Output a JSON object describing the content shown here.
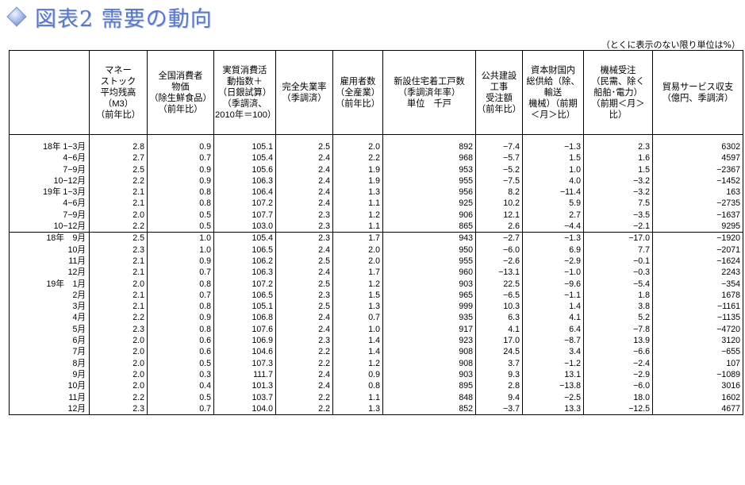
{
  "page_title": "図表2 需要の動向",
  "unit_note": "（とくに表示のない限り単位は%）",
  "columns": [
    "",
    "マネー\nストック\n平均残高\n（M3）\n（前年比）",
    "全国消費者\n物価\n（除生鮮食品）\n（前年比）",
    "実質消費活\n動指数＋\n（日銀試算）\n（季調済、\n2010年＝100）",
    "完全失業率\n（季調済）",
    "雇用者数\n（全産業）\n（前年比）",
    "新設住宅着工戸数\n（季調済年率）\n単位　千戸",
    "公共建設\n工事\n受注額\n（前年比）",
    "資本財国内\n総供給（除、\n輸送\n機械）（前期\n＜月＞比）",
    "機械受注\n（民需、除く\n船舶･電力）\n（前期＜月＞\n比）",
    "貿易サービス収支\n（億円、季調済）"
  ],
  "quarterly": [
    {
      "label": "18年 1−3月",
      "v": [
        "2.8",
        "0.9",
        "105.1",
        "2.5",
        "2.0",
        "892",
        "−7.4",
        "−1.3",
        "2.3",
        "6302"
      ]
    },
    {
      "label": "4−6月",
      "v": [
        "2.7",
        "0.7",
        "105.4",
        "2.4",
        "2.2",
        "968",
        "−5.7",
        "1.5",
        "1.6",
        "4597"
      ]
    },
    {
      "label": "7−9月",
      "v": [
        "2.5",
        "0.9",
        "105.6",
        "2.4",
        "1.9",
        "953",
        "−5.2",
        "1.0",
        "1.5",
        "−2367"
      ]
    },
    {
      "label": "10−12月",
      "v": [
        "2.2",
        "0.9",
        "106.3",
        "2.4",
        "1.9",
        "955",
        "−7.5",
        "4.0",
        "−3.2",
        "−1452"
      ]
    },
    {
      "label": "19年 1−3月",
      "v": [
        "2.1",
        "0.8",
        "106.4",
        "2.4",
        "1.3",
        "956",
        "8.2",
        "−11.4",
        "−3.2",
        "163"
      ]
    },
    {
      "label": "4−6月",
      "v": [
        "2.1",
        "0.8",
        "107.2",
        "2.4",
        "1.1",
        "925",
        "10.2",
        "5.9",
        "7.5",
        "−2735"
      ]
    },
    {
      "label": "7−9月",
      "v": [
        "2.0",
        "0.5",
        "107.7",
        "2.3",
        "1.2",
        "906",
        "12.1",
        "2.7",
        "−3.5",
        "−1637"
      ]
    },
    {
      "label": "10−12月",
      "v": [
        "2.2",
        "0.5",
        "103.0",
        "2.3",
        "1.1",
        "865",
        "2.6",
        "−4.4",
        "−2.1",
        "9295"
      ]
    }
  ],
  "monthly": [
    {
      "label": "18年　9月",
      "v": [
        "2.5",
        "1.0",
        "105.4",
        "2.3",
        "1.7",
        "943",
        "−2.7",
        "−1.3",
        "−17.0",
        "−1920"
      ]
    },
    {
      "label": "10月",
      "v": [
        "2.3",
        "1.0",
        "106.5",
        "2.4",
        "2.0",
        "950",
        "−6.0",
        "6.9",
        "7.7",
        "−2071"
      ]
    },
    {
      "label": "11月",
      "v": [
        "2.1",
        "0.9",
        "106.2",
        "2.5",
        "2.0",
        "955",
        "−2.6",
        "−2.9",
        "−0.1",
        "−1624"
      ]
    },
    {
      "label": "12月",
      "v": [
        "2.1",
        "0.7",
        "106.3",
        "2.4",
        "1.7",
        "960",
        "−13.1",
        "−1.0",
        "−0.3",
        "2243"
      ]
    },
    {
      "label": "19年　1月",
      "v": [
        "2.0",
        "0.8",
        "107.2",
        "2.5",
        "1.2",
        "903",
        "22.5",
        "−9.6",
        "−5.4",
        "−354"
      ]
    },
    {
      "label": "2月",
      "v": [
        "2.1",
        "0.7",
        "106.5",
        "2.3",
        "1.5",
        "965",
        "−6.5",
        "−1.1",
        "1.8",
        "1678"
      ]
    },
    {
      "label": "3月",
      "v": [
        "2.1",
        "0.8",
        "105.1",
        "2.5",
        "1.3",
        "999",
        "10.3",
        "1.4",
        "3.8",
        "−1161"
      ]
    },
    {
      "label": "4月",
      "v": [
        "2.2",
        "0.9",
        "106.8",
        "2.4",
        "0.7",
        "935",
        "6.3",
        "4.1",
        "5.2",
        "−1135"
      ]
    },
    {
      "label": "5月",
      "v": [
        "2.3",
        "0.8",
        "107.6",
        "2.4",
        "1.0",
        "917",
        "4.1",
        "6.4",
        "−7.8",
        "−4720"
      ]
    },
    {
      "label": "6月",
      "v": [
        "2.0",
        "0.6",
        "106.9",
        "2.3",
        "1.4",
        "923",
        "17.0",
        "−8.7",
        "13.9",
        "3120"
      ]
    },
    {
      "label": "7月",
      "v": [
        "2.0",
        "0.6",
        "104.6",
        "2.2",
        "1.4",
        "908",
        "24.5",
        "3.4",
        "−6.6",
        "−655"
      ]
    },
    {
      "label": "8月",
      "v": [
        "2.0",
        "0.5",
        "107.3",
        "2.2",
        "1.2",
        "908",
        "3.7",
        "−1.2",
        "−2.4",
        "107"
      ]
    },
    {
      "label": "9月",
      "v": [
        "2.0",
        "0.3",
        "111.7",
        "2.4",
        "0.9",
        "903",
        "9.3",
        "13.1",
        "−2.9",
        "−1089"
      ]
    },
    {
      "label": "10月",
      "v": [
        "2.0",
        "0.4",
        "101.3",
        "2.4",
        "0.8",
        "895",
        "2.8",
        "−13.8",
        "−6.0",
        "3016"
      ]
    },
    {
      "label": "11月",
      "v": [
        "2.2",
        "0.5",
        "103.7",
        "2.2",
        "1.1",
        "848",
        "9.4",
        "−2.5",
        "18.0",
        "1602"
      ]
    },
    {
      "label": "12月",
      "v": [
        "2.3",
        "0.7",
        "104.0",
        "2.2",
        "1.3",
        "852",
        "−3.7",
        "13.3",
        "−12.5",
        "4677"
      ]
    }
  ]
}
